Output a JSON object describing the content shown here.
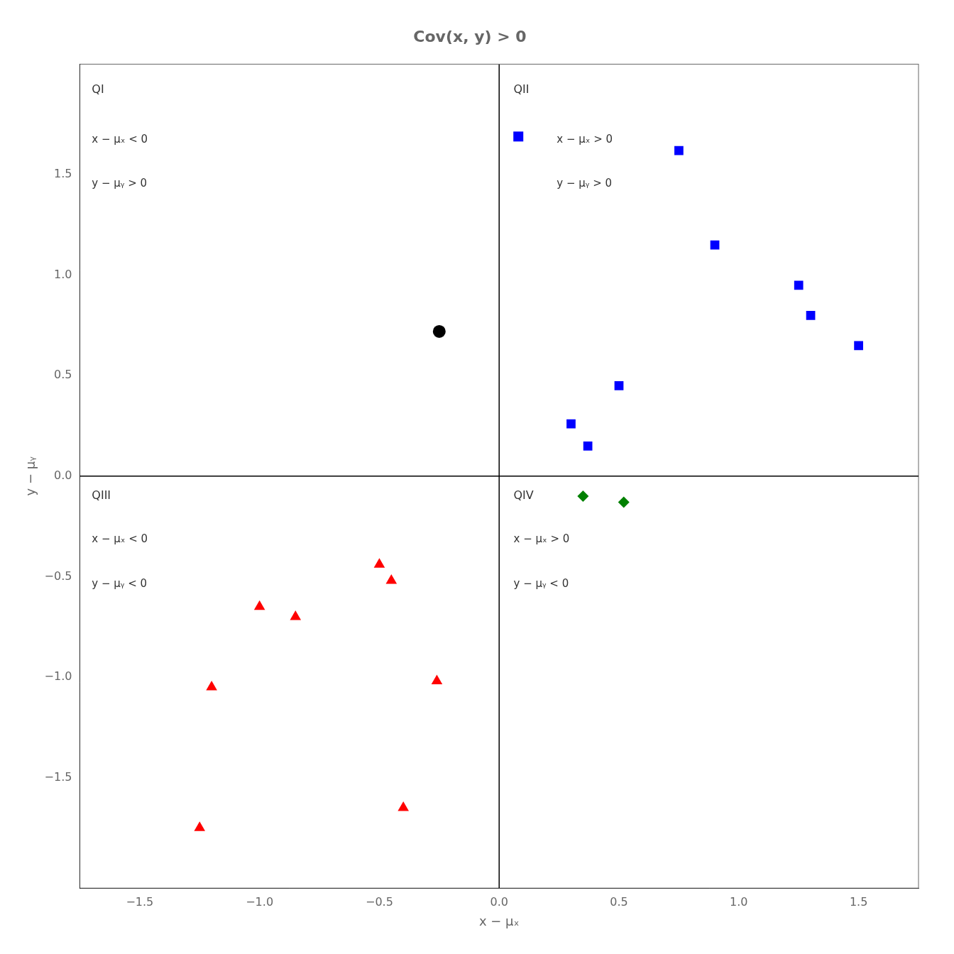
{
  "chart_data": {
    "type": "scatter",
    "title": "Cov(x, y) > 0",
    "x_label": "x − μₓ",
    "y_label": "y − μᵧ",
    "xlim": [
      -1.75,
      1.75
    ],
    "ylim": [
      -2.05,
      2.05
    ],
    "xticks": [
      {
        "value": -1.5,
        "label": "−1.5"
      },
      {
        "value": -1.0,
        "label": "−1.0"
      },
      {
        "value": -0.5,
        "label": "−0.5"
      },
      {
        "value": 0.0,
        "label": "0.0"
      },
      {
        "value": 0.5,
        "label": "0.5"
      },
      {
        "value": 1.0,
        "label": "1.0"
      },
      {
        "value": 1.5,
        "label": "1.5"
      }
    ],
    "yticks": [
      {
        "value": -1.5,
        "label": "−1.5"
      },
      {
        "value": -1.0,
        "label": "−1.0"
      },
      {
        "value": -0.5,
        "label": "−0.5"
      },
      {
        "value": 0.0,
        "label": "0.0"
      },
      {
        "value": 0.5,
        "label": "0.5"
      },
      {
        "value": 1.0,
        "label": "1.0"
      },
      {
        "value": 1.5,
        "label": "1.5"
      }
    ],
    "grid": false,
    "series": [
      {
        "color": "blue",
        "marker": "square",
        "x": [
          0.3,
          0.37,
          0.5,
          0.75,
          0.9,
          1.25,
          1.3,
          1.5
        ],
        "values": [
          0.26,
          0.15,
          0.45,
          1.62,
          1.15,
          0.95,
          0.8,
          0.65
        ]
      },
      {
        "color": "red",
        "marker": "triangle",
        "x": [
          -1.25,
          -1.2,
          -1.0,
          -0.85,
          -0.5,
          -0.45,
          -0.26,
          -0.4
        ],
        "values": [
          -1.75,
          -1.05,
          -0.65,
          -0.7,
          -0.44,
          -0.52,
          -1.02,
          -1.65
        ]
      },
      {
        "color": "black",
        "marker": "circle",
        "x": [
          -0.25
        ],
        "values": [
          0.72
        ]
      },
      {
        "color": "green",
        "marker": "diamond",
        "x": [
          0.35,
          0.52
        ],
        "values": [
          -0.1,
          -0.13
        ]
      }
    ],
    "hlines": [
      0
    ],
    "vlines": [
      0
    ],
    "annotations": [
      {
        "text": "QI",
        "x": -1.7,
        "y": 1.95
      },
      {
        "text": "x − μₓ < 0",
        "x": -1.7,
        "y": 1.7
      },
      {
        "text": "y − μᵧ > 0",
        "x": -1.7,
        "y": 1.48
      },
      {
        "text": "QII",
        "x": 0.06,
        "y": 1.95
      },
      {
        "marker": "square",
        "color": "blue",
        "x": 0.08,
        "y": 1.69
      },
      {
        "text": "x − μₓ > 0",
        "x": 0.24,
        "y": 1.7
      },
      {
        "text": "y − μᵧ > 0",
        "x": 0.24,
        "y": 1.48
      },
      {
        "text": "QIII",
        "x": -1.7,
        "y": -0.07
      },
      {
        "text": "x − μₓ < 0",
        "x": -1.7,
        "y": -0.29
      },
      {
        "text": "y − μᵧ < 0",
        "x": -1.7,
        "y": -0.51
      },
      {
        "text": "QIV",
        "x": 0.06,
        "y": -0.07
      },
      {
        "text": "x − μₓ > 0",
        "x": 0.06,
        "y": -0.29
      },
      {
        "text": "y − μᵧ < 0",
        "x": 0.06,
        "y": -0.51
      }
    ]
  }
}
